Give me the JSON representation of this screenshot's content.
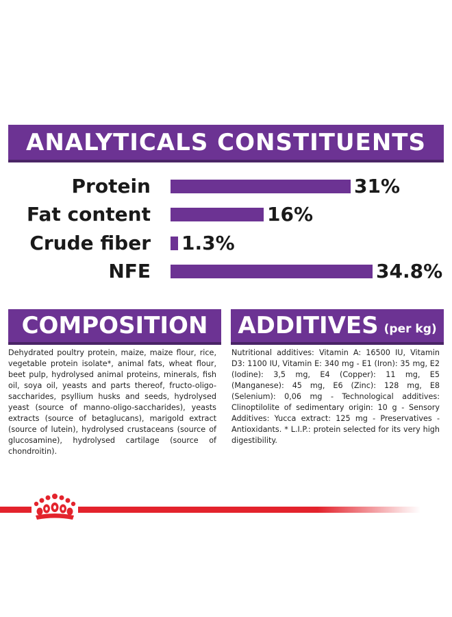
{
  "analytical": {
    "title": "ANALYTICALS CONSTITUENTS",
    "unit": "%",
    "items": [
      {
        "label": "Protein",
        "value": 31,
        "display": "31%"
      },
      {
        "label": "Fat content",
        "value": 16,
        "display": "16%"
      },
      {
        "label": "Crude fiber",
        "value": 1.3,
        "display": "1.3%"
      },
      {
        "label": "NFE",
        "value": 34.8,
        "display": "34.8%"
      }
    ]
  },
  "chart_data": {
    "type": "bar",
    "orientation": "horizontal",
    "title": "ANALYTICALS CONSTITUENTS",
    "categories": [
      "Protein",
      "Fat content",
      "Crude fiber",
      "NFE"
    ],
    "values": [
      31,
      16,
      1.3,
      34.8
    ],
    "data_labels": [
      "31%",
      "16%",
      "1.3%",
      "34.8%"
    ],
    "grid": false
  },
  "composition": {
    "title": "COMPOSITION",
    "text": "Dehydrated poultry protein, maize, maize flour, rice, vegetable protein isolate*, animal fats, wheat flour, beet pulp, hydrolysed animal proteins, minerals, fish oil, soya oil, yeasts and parts thereof, fructo-oligo-saccharides, psyllium husks and seeds, hydrolysed yeast (source of manno-oligo-saccharides), yeasts extracts (source of betaglucans), marigold extract (source of lutein), hydrolysed crustaceans (source of glucosamine), hydrolysed cartilage (source of chondroitin)."
  },
  "additives": {
    "title": "ADDITIVES",
    "subtitle": "(per kg)",
    "text": "Nutritional additives: Vitamin A: 16500 IU, Vitamin D3: 1100 IU, Vitamin E: 340 mg - E1 (Iron): 35 mg, E2 (Iodine): 3,5 mg, E4 (Copper): 11 mg, E5 (Manganese): 45 mg, E6 (Zinc): 128 mg, E8 (Selenium): 0,06 mg - Technological additives: Clinoptilolite of sedimentary origin: 10 g - Sensory Additives: Yucca extract: 125 mg - Preservatives - Antioxidants. * L.I.P.: protein selected for its very high digestibility."
  },
  "brand": {
    "logo": "crown-icon",
    "color_red": "#e3232c",
    "color_purple": "#6c3393"
  }
}
